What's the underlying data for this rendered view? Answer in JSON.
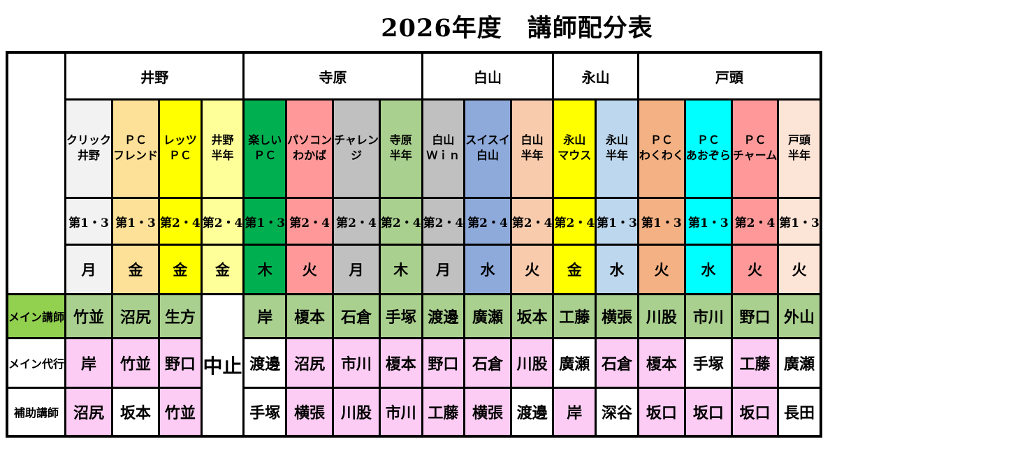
{
  "title": "2026年度　講師配分表",
  "colors": {
    "main_label_bg": "#92D050",
    "main_cell_bg": "#A9D08E",
    "substitute_cell_bg": "#FCCCF4",
    "plain_cell_bg": "#FFFFFF",
    "border": "#000000"
  },
  "table": {
    "groups": [
      {
        "label": "井野",
        "span": 4
      },
      {
        "label": "寺原",
        "span": 4
      },
      {
        "label": "白山",
        "span": 3
      },
      {
        "label": "永山",
        "span": 2
      },
      {
        "label": "戸頭",
        "span": 4
      }
    ],
    "row_labels": {
      "main": "メイン講師",
      "substitute": "メイン代行",
      "assistant": "補助講師"
    },
    "cancelled_label": "中止",
    "columns": [
      {
        "group": "井野",
        "class_name": "クリック\n井野",
        "weeks": "第1・3",
        "day": "月",
        "color": "#F2F2F2",
        "cancelled": false,
        "main": "竹並",
        "substitute": "岸",
        "substitute_bg": "pink",
        "assistant": "沼尻",
        "assistant_bg": "pink"
      },
      {
        "group": "井野",
        "class_name": "ＰＣ\nフレンド",
        "weeks": "第1・3",
        "day": "金",
        "color": "#FDE198",
        "cancelled": false,
        "main": "沼尻",
        "substitute": "竹並",
        "substitute_bg": "pink",
        "assistant": "坂本",
        "assistant_bg": "white"
      },
      {
        "group": "井野",
        "class_name": "レッツ\nＰＣ",
        "weeks": "第2・4",
        "day": "金",
        "color": "#FFFF00",
        "cancelled": false,
        "main": "生方",
        "substitute": "野口",
        "substitute_bg": "pink",
        "assistant": "竹並",
        "assistant_bg": "pink"
      },
      {
        "group": "井野",
        "class_name": "井野\n半年",
        "weeks": "第2・4",
        "day": "金",
        "color": "#FFFF99",
        "cancelled": true
      },
      {
        "group": "寺原",
        "class_name": "楽しい\nＰＣ",
        "weeks": "第1・3",
        "day": "木",
        "color": "#00B050",
        "cancelled": false,
        "main": "岸",
        "substitute": "渡邊",
        "substitute_bg": "white",
        "assistant": "手塚",
        "assistant_bg": "white"
      },
      {
        "group": "寺原",
        "class_name": "パソコン\nわかば",
        "weeks": "第2・4",
        "day": "火",
        "color": "#FF9999",
        "cancelled": false,
        "main": "榎本",
        "substitute": "沼尻",
        "substitute_bg": "pink",
        "assistant": "横張",
        "assistant_bg": "pink"
      },
      {
        "group": "寺原",
        "class_name": "チャレン\nジ",
        "weeks": "第2・4",
        "day": "月",
        "color": "#C0C0C0",
        "cancelled": false,
        "main": "石倉",
        "substitute": "市川",
        "substitute_bg": "pink",
        "assistant": "川股",
        "assistant_bg": "pink"
      },
      {
        "group": "寺原",
        "class_name": "寺原\n半年",
        "weeks": "第2・4",
        "day": "木",
        "color": "#A9D08E",
        "cancelled": false,
        "main": "手塚",
        "substitute": "榎本",
        "substitute_bg": "pink",
        "assistant": "市川",
        "assistant_bg": "pink"
      },
      {
        "group": "白山",
        "class_name": "白山\nＷｉｎ",
        "weeks": "第2・4",
        "day": "月",
        "color": "#C0C0C0",
        "cancelled": false,
        "main": "渡邊",
        "substitute": "野口",
        "substitute_bg": "pink",
        "assistant": "工藤",
        "assistant_bg": "pink"
      },
      {
        "group": "白山",
        "class_name": "スイスイ\n白山",
        "weeks": "第2・4",
        "day": "水",
        "color": "#8EAADB",
        "cancelled": false,
        "main": "廣瀬",
        "substitute": "石倉",
        "substitute_bg": "pink",
        "assistant": "横張",
        "assistant_bg": "pink"
      },
      {
        "group": "白山",
        "class_name": "白山\n半年",
        "weeks": "第2・4",
        "day": "火",
        "color": "#F8CBAD",
        "cancelled": false,
        "main": "坂本",
        "substitute": "川股",
        "substitute_bg": "pink",
        "assistant": "渡邊",
        "assistant_bg": "white"
      },
      {
        "group": "永山",
        "class_name": "永山\nマウス",
        "weeks": "第2・4",
        "day": "金",
        "color": "#FFFF00",
        "cancelled": false,
        "main": "工藤",
        "substitute": "廣瀬",
        "substitute_bg": "white",
        "assistant": "岸",
        "assistant_bg": "pink"
      },
      {
        "group": "永山",
        "class_name": "永山\n半年",
        "weeks": "第1・3",
        "day": "水",
        "color": "#BDD7EE",
        "cancelled": false,
        "main": "横張",
        "substitute": "石倉",
        "substitute_bg": "pink",
        "assistant": "深谷",
        "assistant_bg": "white"
      },
      {
        "group": "戸頭",
        "class_name": "ＰＣ\nわくわく",
        "weeks": "第1・3",
        "day": "火",
        "color": "#F4B183",
        "cancelled": false,
        "main": "川股",
        "substitute": "榎本",
        "substitute_bg": "pink",
        "assistant": "坂口",
        "assistant_bg": "pink"
      },
      {
        "group": "戸頭",
        "class_name": "ＰＣ\nあおぞら",
        "weeks": "第1・3",
        "day": "水",
        "color": "#00FFFF",
        "cancelled": false,
        "main": "市川",
        "substitute": "手塚",
        "substitute_bg": "white",
        "assistant": "坂口",
        "assistant_bg": "pink"
      },
      {
        "group": "戸頭",
        "class_name": "ＰＣ\nチャーム",
        "weeks": "第2・4",
        "day": "火",
        "color": "#FF9999",
        "cancelled": false,
        "main": "野口",
        "substitute": "工藤",
        "substitute_bg": "pink",
        "assistant": "坂口",
        "assistant_bg": "pink"
      },
      {
        "group": "戸頭",
        "class_name": "戸頭\n半年",
        "weeks": "第1・3",
        "day": "火",
        "color": "#FCE4D6",
        "cancelled": false,
        "main": "外山",
        "substitute": "廣瀬",
        "substitute_bg": "white",
        "assistant": "長田",
        "assistant_bg": "white"
      }
    ]
  }
}
